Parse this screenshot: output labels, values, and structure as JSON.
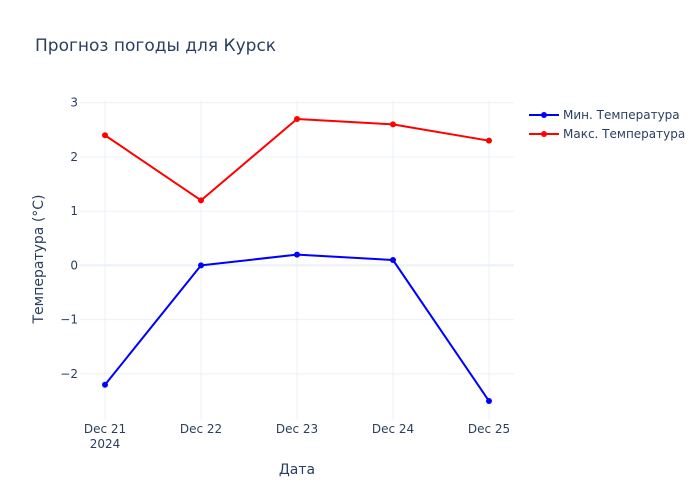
{
  "chart_data": {
    "type": "line",
    "title": "Прогноз погоды для Курск",
    "xlabel": "Дата",
    "ylabel": "Температура (°C)",
    "x": [
      "2024-12-21",
      "2024-12-22",
      "2024-12-23",
      "2024-12-24",
      "2024-12-25"
    ],
    "x_tick_labels": [
      {
        "line1": "Dec 21",
        "line2": "2024"
      },
      {
        "line1": "Dec 22",
        "line2": ""
      },
      {
        "line1": "Dec 23",
        "line2": ""
      },
      {
        "line1": "Dec 24",
        "line2": ""
      },
      {
        "line1": "Dec 25",
        "line2": ""
      }
    ],
    "y_ticks": [
      3,
      2,
      1,
      0,
      -1,
      -2
    ],
    "y_tick_labels": [
      "3",
      "2",
      "1",
      "0",
      "−1",
      "−2"
    ],
    "ylim": [
      -2.85,
      3.05
    ],
    "grid": true,
    "legend_position": "top-right",
    "series": [
      {
        "name": "Мин. Температура",
        "color": "#0000ff",
        "values": [
          -2.2,
          0.0,
          0.2,
          0.1,
          -2.5
        ]
      },
      {
        "name": "Макс. Температура",
        "color": "#ff0000",
        "values": [
          2.4,
          1.2,
          2.7,
          2.6,
          2.3
        ]
      }
    ]
  }
}
